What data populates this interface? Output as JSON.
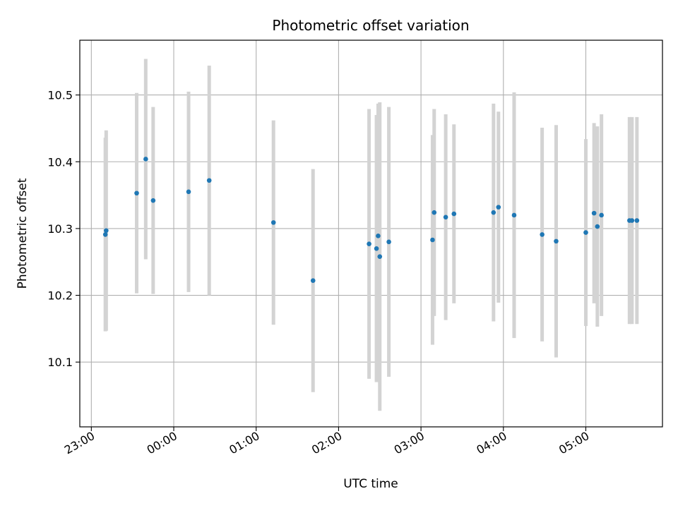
{
  "chart_data": {
    "type": "scatter",
    "title": "Photometric offset variation",
    "xlabel": "UTC time",
    "ylabel": "Photometric offset",
    "x_unit": "hours",
    "x_tick_values": [
      23.0,
      24.0,
      25.0,
      26.0,
      27.0,
      28.0,
      29.0
    ],
    "x_tick_labels": [
      "23:00",
      "00:00",
      "01:00",
      "02:00",
      "03:00",
      "04:00",
      "05:00"
    ],
    "y_ticks": [
      10.1,
      10.2,
      10.3,
      10.4,
      10.5
    ],
    "y_tick_labels": [
      "10.1",
      "10.2",
      "10.3",
      "10.4",
      "10.5"
    ],
    "xlim": [
      22.86,
      29.93
    ],
    "ylim": [
      10.003,
      10.582
    ],
    "grid": true,
    "colors": {
      "point": "#1f77b4",
      "errorbar": "#d3d3d3",
      "grid": "#b0b0b0"
    },
    "points": [
      {
        "x": 23.17,
        "y": 10.291,
        "err": 0.145
      },
      {
        "x": 23.18,
        "y": 10.297,
        "err": 0.15
      },
      {
        "x": 23.55,
        "y": 10.353,
        "err": 0.15
      },
      {
        "x": 23.66,
        "y": 10.404,
        "err": 0.15
      },
      {
        "x": 23.75,
        "y": 10.342,
        "err": 0.14
      },
      {
        "x": 24.18,
        "y": 10.355,
        "err": 0.15
      },
      {
        "x": 24.43,
        "y": 10.372,
        "err": 0.172
      },
      {
        "x": 25.21,
        "y": 10.309,
        "err": 0.153
      },
      {
        "x": 25.69,
        "y": 10.222,
        "err": 0.167
      },
      {
        "x": 26.37,
        "y": 10.277,
        "err": 0.202
      },
      {
        "x": 26.46,
        "y": 10.27,
        "err": 0.2
      },
      {
        "x": 26.48,
        "y": 10.289,
        "err": 0.198
      },
      {
        "x": 26.5,
        "y": 10.258,
        "err": 0.231
      },
      {
        "x": 26.61,
        "y": 10.28,
        "err": 0.202
      },
      {
        "x": 27.14,
        "y": 10.283,
        "err": 0.157
      },
      {
        "x": 27.16,
        "y": 10.324,
        "err": 0.155
      },
      {
        "x": 27.3,
        "y": 10.317,
        "err": 0.154
      },
      {
        "x": 27.4,
        "y": 10.322,
        "err": 0.134
      },
      {
        "x": 27.88,
        "y": 10.324,
        "err": 0.163
      },
      {
        "x": 27.94,
        "y": 10.332,
        "err": 0.143
      },
      {
        "x": 28.13,
        "y": 10.32,
        "err": 0.184
      },
      {
        "x": 28.47,
        "y": 10.291,
        "err": 0.16
      },
      {
        "x": 28.64,
        "y": 10.281,
        "err": 0.174
      },
      {
        "x": 29.0,
        "y": 10.294,
        "err": 0.14
      },
      {
        "x": 29.1,
        "y": 10.323,
        "err": 0.135
      },
      {
        "x": 29.14,
        "y": 10.303,
        "err": 0.15
      },
      {
        "x": 29.19,
        "y": 10.32,
        "err": 0.151
      },
      {
        "x": 29.53,
        "y": 10.312,
        "err": 0.155
      },
      {
        "x": 29.56,
        "y": 10.312,
        "err": 0.155
      },
      {
        "x": 29.62,
        "y": 10.312,
        "err": 0.155
      }
    ]
  }
}
